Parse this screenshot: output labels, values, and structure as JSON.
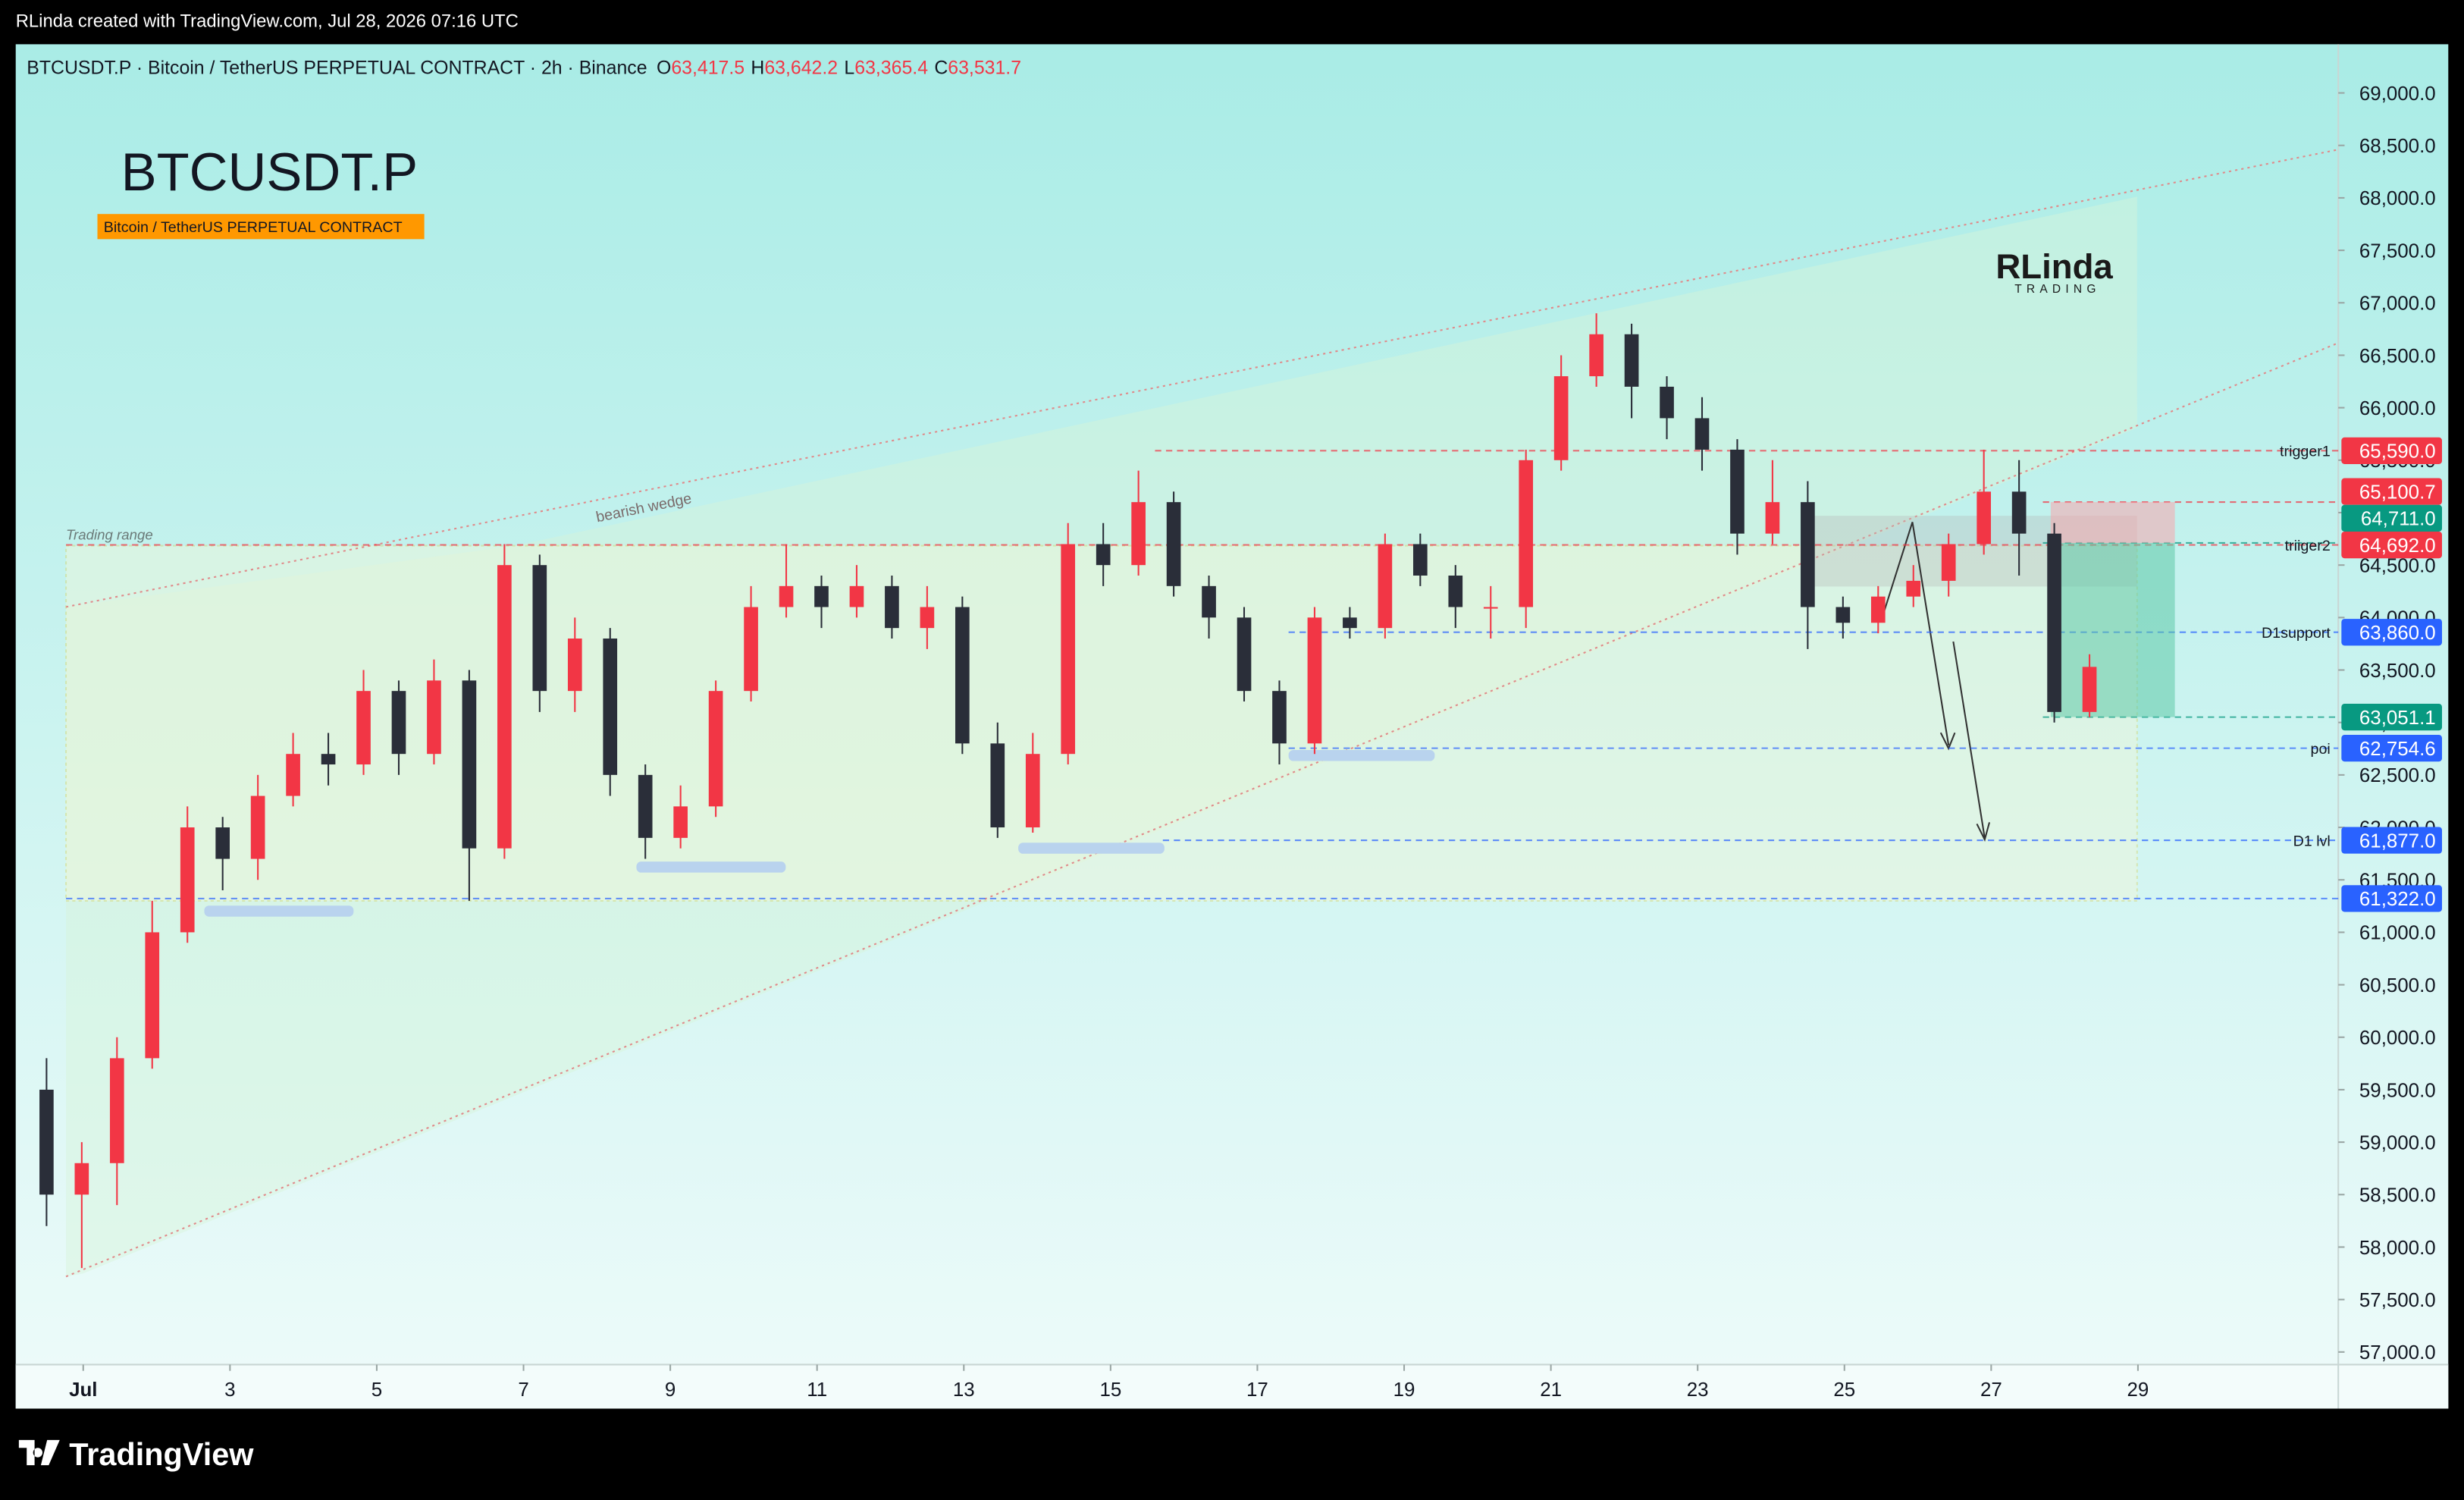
{
  "top_bar": {
    "text": "RLinda created with TradingView.com, Jul 28, 2026 07:16 UTC"
  },
  "chart_data": {
    "type": "candlestick",
    "symbol_line": "BTCUSDT.P · Bitcoin / TetherUS PERPETUAL CONTRACT · 2h · Binance",
    "ohlc_header": [
      {
        "key": "O",
        "value": "63,417.5"
      },
      {
        "key": "H",
        "value": "63,642.2"
      },
      {
        "key": "L",
        "value": "63,365.4"
      },
      {
        "key": "C",
        "value": "63,531.7"
      }
    ],
    "symbol": "BTCUSDT.P",
    "description": "Bitcoin / TetherUS PERPETUAL CONTRACT",
    "watermark": [
      "RLinda",
      "TRADING"
    ],
    "annotations": [
      "Trading range",
      "bearish wedge"
    ],
    "x": [
      0.5,
      0.98,
      1.46,
      1.94,
      2.42,
      2.9,
      3.38,
      3.86,
      4.34,
      4.82,
      5.3,
      5.78,
      6.26,
      6.74,
      7.22,
      7.7,
      8.18,
      8.66,
      9.14,
      9.62,
      10.1,
      10.58,
      11.06,
      11.54,
      12.02,
      12.5,
      12.98,
      13.46,
      13.94,
      14.42,
      14.9,
      15.38,
      15.86,
      16.34,
      16.82,
      17.3,
      17.78,
      18.26,
      18.74,
      19.22,
      19.7,
      20.18,
      20.66,
      21.14,
      21.62,
      22.1,
      22.58,
      23.06,
      23.54,
      24.02,
      24.5,
      24.98,
      25.46,
      25.94,
      26.42,
      26.9,
      27.38,
      27.86,
      28.34
    ],
    "open": [
      59500,
      58500,
      58800,
      59800,
      61000,
      62000,
      61700,
      62300,
      62700,
      62600,
      63300,
      62700,
      63400,
      61800,
      64500,
      63300,
      63800,
      62500,
      61900,
      62200,
      63300,
      64100,
      64300,
      64100,
      64300,
      63900,
      64100,
      62800,
      62000,
      62700,
      64700,
      64500,
      65100,
      64300,
      64000,
      63300,
      62800,
      64000,
      63900,
      64700,
      64400,
      64100,
      64100,
      65500,
      66300,
      66700,
      66200,
      65900,
      65600,
      64800,
      65100,
      64100,
      63950,
      64200,
      64350,
      64700,
      65200,
      64800,
      63100
    ],
    "high": [
      59800,
      59000,
      60000,
      61300,
      62200,
      62100,
      62500,
      62900,
      62900,
      63500,
      63400,
      63600,
      63500,
      64700,
      64600,
      64000,
      63900,
      62600,
      62400,
      63400,
      64300,
      64700,
      64400,
      64500,
      64400,
      64300,
      64200,
      63000,
      62900,
      64900,
      64900,
      65400,
      65200,
      64400,
      64100,
      63400,
      64100,
      64100,
      64800,
      64800,
      64500,
      64300,
      65600,
      66500,
      66900,
      66800,
      66300,
      66100,
      65700,
      65500,
      65300,
      64200,
      64300,
      64500,
      64800,
      65600,
      65500,
      64900,
      63650
    ],
    "low": [
      58200,
      57800,
      58400,
      59700,
      60900,
      61400,
      61500,
      62200,
      62400,
      62500,
      62500,
      62600,
      61300,
      61700,
      63100,
      63100,
      62300,
      61700,
      61800,
      62100,
      63200,
      64000,
      63900,
      64000,
      63800,
      63700,
      62700,
      61900,
      61950,
      62600,
      64300,
      64400,
      64200,
      63800,
      63200,
      62600,
      62700,
      63800,
      63800,
      64300,
      63900,
      63800,
      63900,
      65400,
      66200,
      65900,
      65700,
      65400,
      64600,
      64700,
      63700,
      63800,
      63850,
      64100,
      64200,
      64600,
      64400,
      63000,
      63050
    ],
    "close": [
      58500,
      58800,
      59800,
      61000,
      62000,
      61700,
      62300,
      62700,
      62600,
      63300,
      62700,
      63400,
      61800,
      64500,
      63300,
      63800,
      62500,
      61900,
      62200,
      63300,
      64100,
      64300,
      64100,
      64300,
      63900,
      64100,
      62800,
      62000,
      62700,
      64700,
      64500,
      65100,
      64300,
      64000,
      63300,
      62800,
      64000,
      63900,
      64700,
      64400,
      64100,
      64100,
      65500,
      66300,
      66700,
      66200,
      65900,
      65600,
      64800,
      65100,
      64100,
      63950,
      64200,
      64350,
      64700,
      65200,
      64800,
      63100,
      63530
    ],
    "up_color": "#f23645",
    "down_color": "#2a2e39",
    "xlim": [
      0.08,
      31.73
    ],
    "xticks": [
      {
        "value": 1,
        "label": "Jul"
      },
      3,
      5,
      7,
      9,
      11,
      13,
      15,
      17,
      19,
      21,
      23,
      25,
      27,
      29
    ],
    "ylim": [
      56880,
      69464
    ],
    "yticks": [
      {
        "value": 57000,
        "label": "57,000.0"
      },
      {
        "value": 57500,
        "label": "57,500.0"
      },
      {
        "value": 58000,
        "label": "58,000.0"
      },
      {
        "value": 58500,
        "label": "58,500.0"
      },
      {
        "value": 59000,
        "label": "59,000.0"
      },
      {
        "value": 59500,
        "label": "59,500.0"
      },
      {
        "value": 60000,
        "label": "60,000.0"
      },
      {
        "value": 60500,
        "label": "60,500.0"
      },
      {
        "value": 61000,
        "label": "61,000.0"
      },
      {
        "value": 61500,
        "label": "61,500.0"
      },
      {
        "value": 62000,
        "label": "62,000.0"
      },
      {
        "value": 62500,
        "label": "62,500.0"
      },
      {
        "value": 63000,
        "label": "63,000.0"
      },
      {
        "value": 63500,
        "label": "63,500.0"
      },
      {
        "value": 64000,
        "label": "64,000.0"
      },
      {
        "value": 64500,
        "label": "64,500.0"
      },
      {
        "value": 65000,
        "label": "65,000.0"
      },
      {
        "value": 65500,
        "label": "65,500.0"
      },
      {
        "value": 66000,
        "label": "66,000.0"
      },
      {
        "value": 66500,
        "label": "66,500.0"
      },
      {
        "value": 67000,
        "label": "67,000.0"
      },
      {
        "value": 67500,
        "label": "67,500.0"
      },
      {
        "value": 68000,
        "label": "68,000.0"
      },
      {
        "value": 68500,
        "label": "68,500.0"
      },
      {
        "value": 69000,
        "label": "69,000.0"
      }
    ],
    "levels": [
      {
        "name": "trigger1",
        "value": 65590,
        "label": "65,590.0",
        "color": "#f23645"
      },
      {
        "value": 65100.7,
        "label": "65,100.7",
        "color": "#f23645"
      },
      {
        "value": 64711,
        "label": "64,711.0",
        "color": "#089981"
      },
      {
        "name": "triiger2",
        "value": 64692,
        "label": "64,692.0",
        "color": "#f23645"
      },
      {
        "name": "D1support",
        "value": 63860,
        "label": "63,860.0",
        "color": "#2962ff"
      },
      {
        "value": 63051.1,
        "label": "63,051.1",
        "color": "#089981"
      },
      {
        "name": "poi",
        "value": 62754.6,
        "label": "62,754.6",
        "color": "#2962ff"
      },
      {
        "name": "D1 lvl",
        "value": 61877,
        "label": "61,877.0",
        "color": "#2962ff"
      },
      {
        "value": 61322,
        "label": "61,322.0",
        "color": "#2962ff"
      }
    ]
  },
  "footer": {
    "brand": "TradingView"
  }
}
